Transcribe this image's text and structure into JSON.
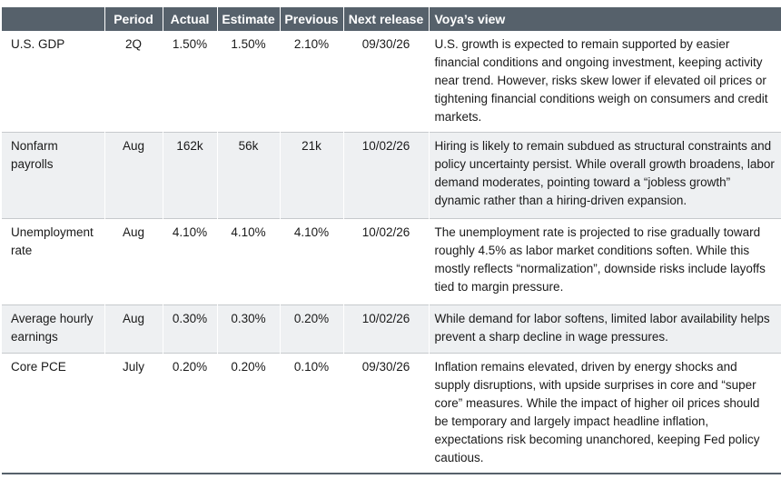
{
  "table": {
    "headers": [
      "",
      "Period",
      "Actual",
      "Estimate",
      "Previous",
      "Next release",
      "Voya’s view"
    ],
    "rows": [
      {
        "indicator": "U.S. GDP",
        "period": "2Q",
        "actual": "1.50%",
        "estimate": "1.50%",
        "previous": "2.10%",
        "next_release": "09/30/26",
        "view": "U.S. growth is expected to remain supported by easier financial conditions and ongoing investment, keeping activity near trend. However, risks skew lower if elevated oil prices or tightening financial conditions weigh on consumers and credit markets."
      },
      {
        "indicator": "Nonfarm payrolls",
        "period": "Aug",
        "actual": "162k",
        "estimate": "56k",
        "previous": "21k",
        "next_release": "10/02/26",
        "view": "Hiring is likely to remain subdued as structural constraints and policy uncertainty persist. While overall growth broadens, labor demand moderates, pointing toward a “jobless growth” dynamic rather than a hiring-driven expansion."
      },
      {
        "indicator": "Unemployment rate",
        "period": "Aug",
        "actual": "4.10%",
        "estimate": "4.10%",
        "previous": "4.10%",
        "next_release": "10/02/26",
        "view": "The unemployment rate is projected to rise gradually toward roughly 4.5% as labor market conditions soften. While this mostly reflects “normalization”, downside risks include layoffs tied to margin pressure."
      },
      {
        "indicator": "Average hourly earnings",
        "period": "Aug",
        "actual": "0.30%",
        "estimate": "0.30%",
        "previous": "0.20%",
        "next_release": "10/02/26",
        "view": "While demand for labor softens, limited labor availability helps prevent a sharp decline in wage pressures."
      },
      {
        "indicator": "Core PCE",
        "period": "July",
        "actual": "0.20%",
        "estimate": "0.20%",
        "previous": "0.10%",
        "next_release": "09/30/26",
        "view": "Inflation remains elevated, driven by energy shocks and supply disruptions, with upside surprises in core and “super core” measures. While the impact of higher oil prices should be temporary and largely impact headline inflation, expectations risk becoming unanchored, keeping Fed policy cautious."
      }
    ]
  }
}
